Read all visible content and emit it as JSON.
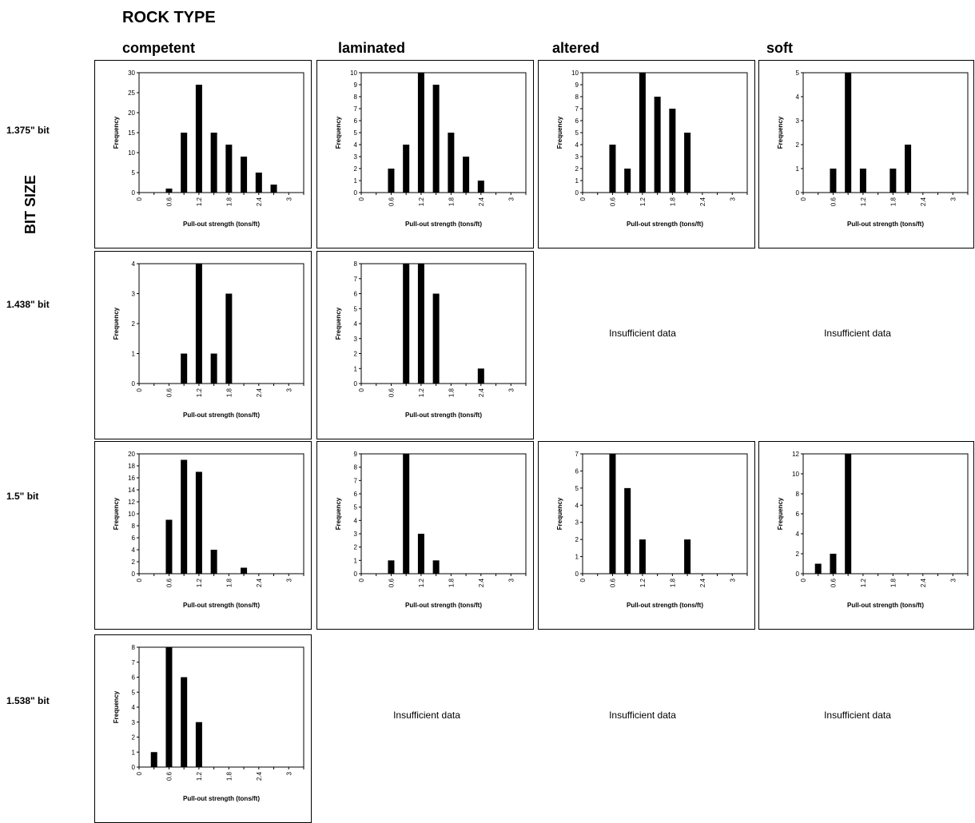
{
  "header": {
    "rock_type_label": "ROCK TYPE",
    "bit_size_label": "BIT SIZE",
    "columns": [
      "competent",
      "laminated",
      "altered",
      "soft"
    ],
    "rows": [
      "1.375\" bit",
      "1.438\" bit",
      "1.5\" bit",
      "1.538\" bit"
    ]
  },
  "insufficient_label": "Insufficient data",
  "chart_data": [
    {
      "type": "bar",
      "row": 0,
      "col": 0,
      "xlabel": "Pull-out strength (tons/ft)",
      "ylabel": "Frequency",
      "x": [
        0.6,
        0.9,
        1.2,
        1.5,
        1.8,
        2.1,
        2.4,
        2.7
      ],
      "values": [
        1,
        15,
        27,
        15,
        12,
        9,
        5,
        2
      ],
      "xlim": [
        0,
        3.3
      ],
      "xticks": [
        0,
        0.6,
        1.2,
        1.8,
        2.4,
        3
      ],
      "ylim": [
        0,
        30
      ],
      "yticks": [
        0,
        5,
        10,
        15,
        20,
        25,
        30
      ]
    },
    {
      "type": "bar",
      "row": 0,
      "col": 1,
      "xlabel": "Pull-out strength (tons/ft)",
      "ylabel": "Frequency",
      "x": [
        0.6,
        0.9,
        1.2,
        1.5,
        1.8,
        2.1,
        2.4
      ],
      "values": [
        2,
        4,
        10,
        9,
        5,
        3,
        1
      ],
      "xlim": [
        0,
        3.3
      ],
      "xticks": [
        0,
        0.6,
        1.2,
        1.8,
        2.4,
        3
      ],
      "ylim": [
        0,
        10
      ],
      "yticks": [
        0,
        1,
        2,
        3,
        4,
        5,
        6,
        7,
        8,
        9,
        10
      ]
    },
    {
      "type": "bar",
      "row": 0,
      "col": 2,
      "xlabel": "Pull-out strength (tons/ft)",
      "ylabel": "Frequency",
      "x": [
        0.6,
        0.9,
        1.2,
        1.5,
        1.8,
        2.1
      ],
      "values": [
        4,
        2,
        10,
        8,
        7,
        5
      ],
      "xlim": [
        0,
        3.3
      ],
      "xticks": [
        0,
        0.6,
        1.2,
        1.8,
        2.4,
        3
      ],
      "ylim": [
        0,
        10
      ],
      "yticks": [
        0,
        1,
        2,
        3,
        4,
        5,
        6,
        7,
        8,
        9,
        10
      ]
    },
    {
      "type": "bar",
      "row": 0,
      "col": 3,
      "xlabel": "Pull-out strength (tons/ft)",
      "ylabel": "Frequency",
      "x": [
        0.6,
        0.9,
        1.2,
        1.8,
        2.1
      ],
      "values": [
        1,
        5,
        1,
        1,
        2
      ],
      "xlim": [
        0,
        3.3
      ],
      "xticks": [
        0,
        0.6,
        1.2,
        1.8,
        2.4,
        3
      ],
      "ylim": [
        0,
        5
      ],
      "yticks": [
        0,
        1,
        2,
        3,
        4,
        5
      ]
    },
    {
      "type": "bar",
      "row": 1,
      "col": 0,
      "xlabel": "Pull-out strength (tons/ft)",
      "ylabel": "Frequency",
      "x": [
        0.9,
        1.2,
        1.5,
        1.8
      ],
      "values": [
        1,
        4,
        1,
        3
      ],
      "xlim": [
        0,
        3.3
      ],
      "xticks": [
        0,
        0.6,
        1.2,
        1.8,
        2.4,
        3
      ],
      "ylim": [
        0,
        4
      ],
      "yticks": [
        0,
        1,
        2,
        3,
        4
      ]
    },
    {
      "type": "bar",
      "row": 1,
      "col": 1,
      "xlabel": "Pull-out strength (tons/ft)",
      "ylabel": "Frequency",
      "x": [
        0.9,
        1.2,
        1.5,
        2.4
      ],
      "values": [
        8,
        8,
        6,
        1
      ],
      "xlim": [
        0,
        3.3
      ],
      "xticks": [
        0,
        0.6,
        1.2,
        1.8,
        2.4,
        3
      ],
      "ylim": [
        0,
        8
      ],
      "yticks": [
        0,
        1,
        2,
        3,
        4,
        5,
        6,
        7,
        8
      ]
    },
    {
      "type": "bar",
      "row": 2,
      "col": 0,
      "xlabel": "Pull-out strength (tons/ft)",
      "ylabel": "Frequency",
      "x": [
        0.6,
        0.9,
        1.2,
        1.5,
        2.1
      ],
      "values": [
        9,
        19,
        17,
        4,
        1
      ],
      "xlim": [
        0,
        3.3
      ],
      "xticks": [
        0,
        0.6,
        1.2,
        1.8,
        2.4,
        3
      ],
      "ylim": [
        0,
        20
      ],
      "yticks": [
        0,
        2,
        4,
        6,
        8,
        10,
        12,
        14,
        16,
        18,
        20
      ]
    },
    {
      "type": "bar",
      "row": 2,
      "col": 1,
      "xlabel": "Pull-out strength (tons/ft)",
      "ylabel": "Frequency",
      "x": [
        0.6,
        0.9,
        1.2,
        1.5
      ],
      "values": [
        1,
        9,
        3,
        1
      ],
      "xlim": [
        0,
        3.3
      ],
      "xticks": [
        0,
        0.6,
        1.2,
        1.8,
        2.4,
        3
      ],
      "ylim": [
        0,
        9
      ],
      "yticks": [
        0,
        1,
        2,
        3,
        4,
        5,
        6,
        7,
        8,
        9
      ]
    },
    {
      "type": "bar",
      "row": 2,
      "col": 2,
      "xlabel": "Pull-out strength (tons/ft)",
      "ylabel": "Frequency",
      "x": [
        0.6,
        0.9,
        1.2,
        2.1
      ],
      "values": [
        7,
        5,
        2,
        2
      ],
      "xlim": [
        0,
        3.3
      ],
      "xticks": [
        0,
        0.6,
        1.2,
        1.8,
        2.4,
        3
      ],
      "ylim": [
        0,
        7
      ],
      "yticks": [
        0,
        1,
        2,
        3,
        4,
        5,
        6,
        7
      ]
    },
    {
      "type": "bar",
      "row": 2,
      "col": 3,
      "xlabel": "Pull-out strength (tons/ft)",
      "ylabel": "Frequency",
      "x": [
        0.3,
        0.6,
        0.9
      ],
      "values": [
        1,
        2,
        12
      ],
      "xlim": [
        0,
        3.3
      ],
      "xticks": [
        0,
        0.6,
        1.2,
        1.8,
        2.4,
        3
      ],
      "ylim": [
        0,
        12
      ],
      "yticks": [
        0,
        2,
        4,
        6,
        8,
        10,
        12
      ]
    },
    {
      "type": "bar",
      "row": 3,
      "col": 0,
      "xlabel": "Pull-out strength (tons/ft)",
      "ylabel": "Frequency",
      "x": [
        0.3,
        0.6,
        0.9,
        1.2
      ],
      "values": [
        1,
        8,
        6,
        3
      ],
      "xlim": [
        0,
        3.3
      ],
      "xticks": [
        0,
        0.6,
        1.2,
        1.8,
        2.4,
        3
      ],
      "ylim": [
        0,
        8
      ],
      "yticks": [
        0,
        1,
        2,
        3,
        4,
        5,
        6,
        7,
        8
      ]
    }
  ],
  "insufficient_cells": [
    {
      "row": 1,
      "col": 2
    },
    {
      "row": 1,
      "col": 3
    },
    {
      "row": 3,
      "col": 1
    },
    {
      "row": 3,
      "col": 2
    },
    {
      "row": 3,
      "col": 3
    }
  ]
}
